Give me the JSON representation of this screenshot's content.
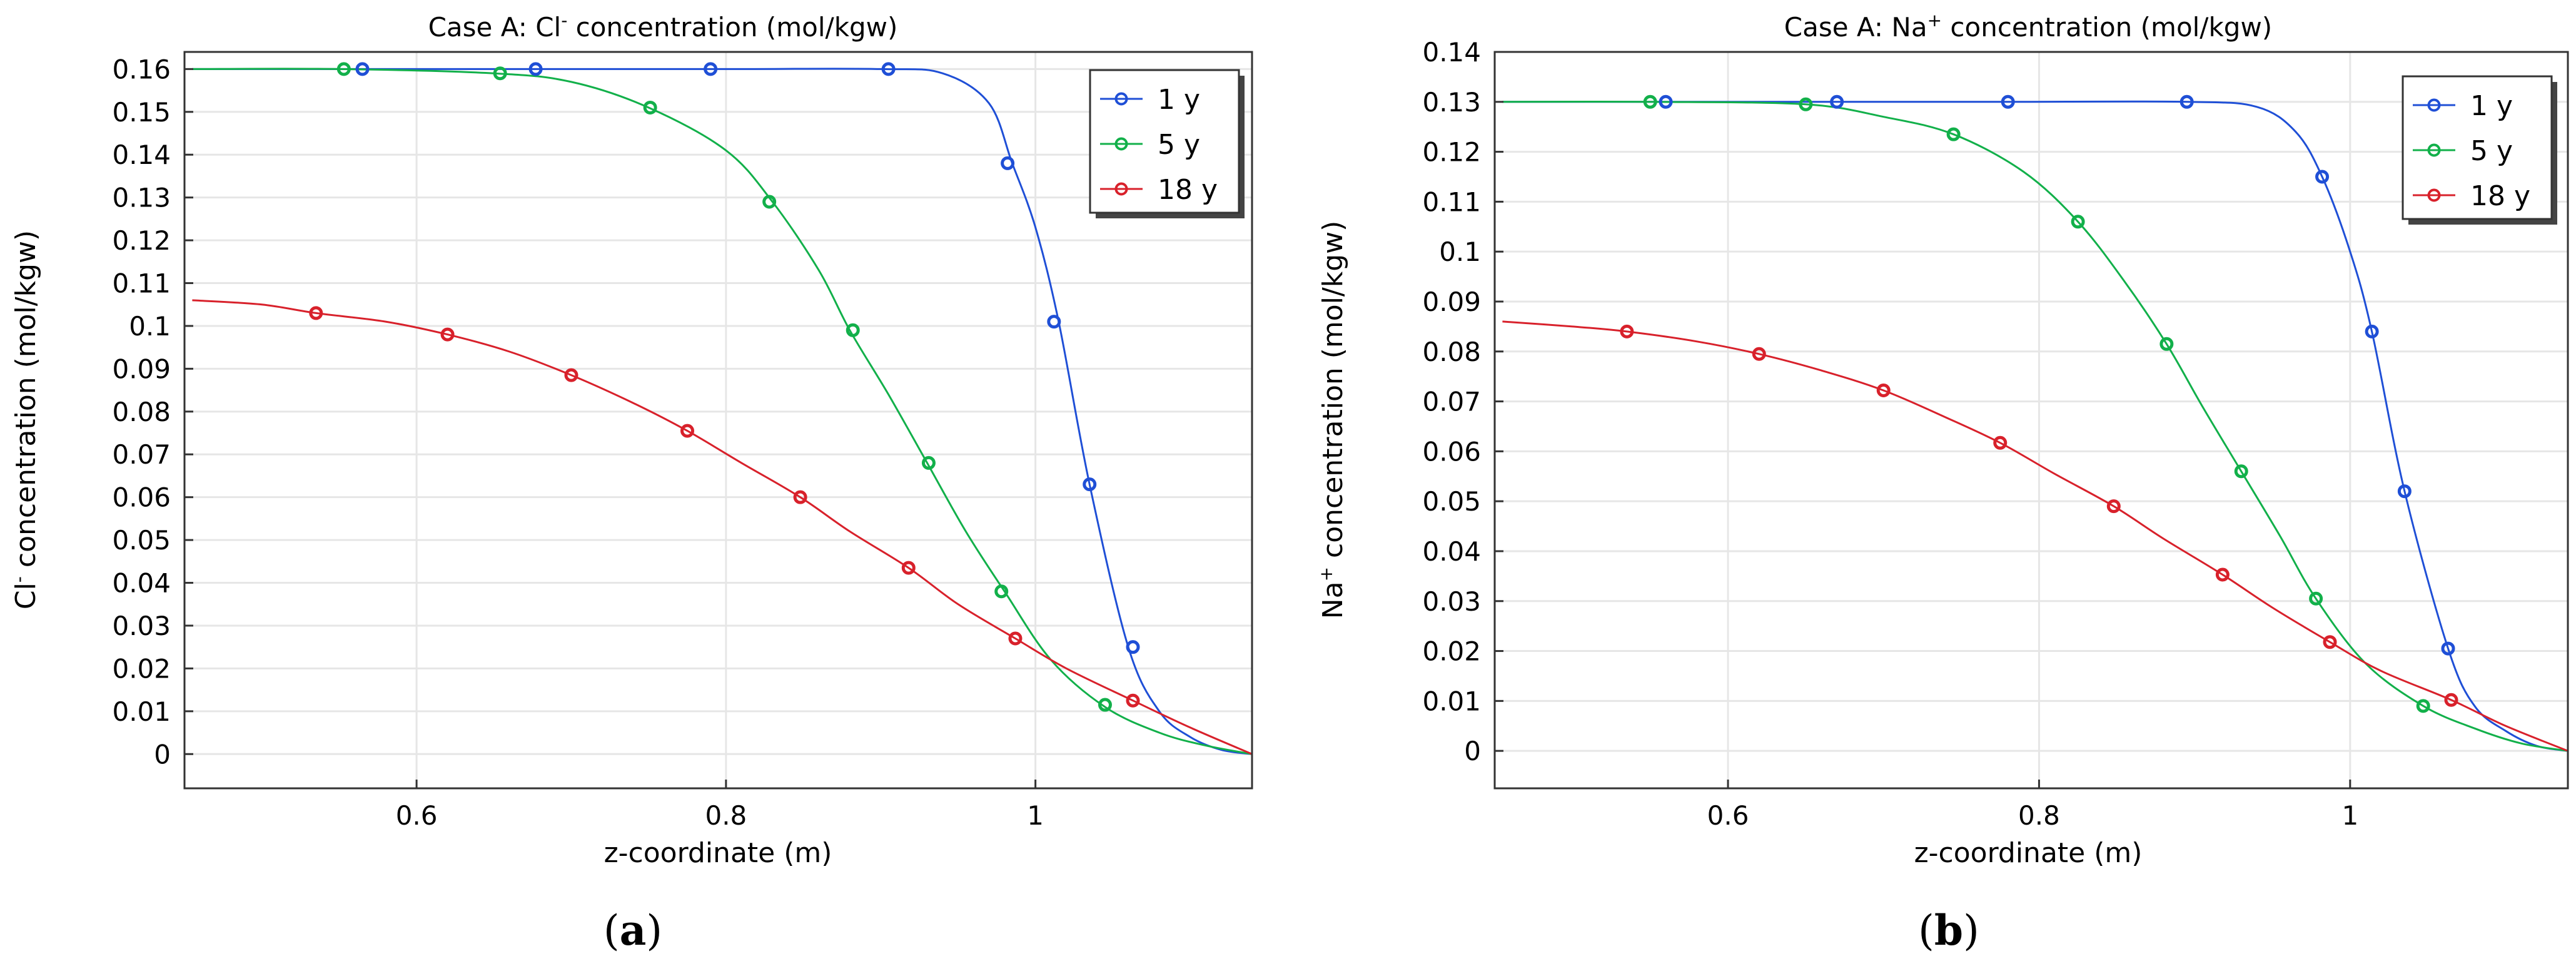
{
  "figure": {
    "captions": [
      {
        "open": "(",
        "letter": "a",
        "close": ")"
      },
      {
        "open": "(",
        "letter": "b",
        "close": ")"
      }
    ]
  },
  "chart_data": [
    {
      "type": "line",
      "title_prefix": "Case A: Cl",
      "title_sup": "-",
      "title_suffix": " concentration (mol/kgw)",
      "xlabel": "z-coordinate (m)",
      "ylabel_prefix": "Cl",
      "ylabel_sup": "-",
      "ylabel_suffix": " concentration (mol/kgw)",
      "xlim": [
        0.45,
        1.14
      ],
      "ylim": [
        -0.008,
        0.164
      ],
      "xticks": [
        0.6,
        0.8,
        1.0
      ],
      "xtick_labels": [
        "0.6",
        "0.8",
        "1"
      ],
      "yticks": [
        0,
        0.01,
        0.02,
        0.03,
        0.04,
        0.05,
        0.06,
        0.07,
        0.08,
        0.09,
        0.1,
        0.11,
        0.12,
        0.13,
        0.14,
        0.15,
        0.16
      ],
      "ytick_labels": [
        "0",
        "0.01",
        "0.02",
        "0.03",
        "0.04",
        "0.05",
        "0.06",
        "0.07",
        "0.08",
        "0.09",
        "0.1",
        "0.11",
        "0.12",
        "0.13",
        "0.14",
        "0.15",
        "0.16"
      ],
      "grid": true,
      "legend": "top-right",
      "series": [
        {
          "name": "1 y",
          "color": "#1f4fd6",
          "x": [
            0.455,
            0.56,
            0.68,
            0.8,
            0.9,
            0.94,
            0.97,
            0.985,
            1.0,
            1.015,
            1.035,
            1.06,
            1.08,
            1.1,
            1.12,
            1.14
          ],
          "y": [
            0.16,
            0.16,
            0.16,
            0.16,
            0.16,
            0.159,
            0.152,
            0.138,
            0.123,
            0.101,
            0.063,
            0.025,
            0.01,
            0.004,
            0.001,
            0
          ],
          "markers_x": [
            0.565,
            0.677,
            0.79,
            0.905,
            0.982,
            1.012,
            1.035,
            1.063
          ],
          "markers_y": [
            0.16,
            0.16,
            0.16,
            0.16,
            0.138,
            0.101,
            0.063,
            0.025
          ]
        },
        {
          "name": "5 y",
          "color": "#12b04a",
          "x": [
            0.455,
            0.55,
            0.65,
            0.7,
            0.75,
            0.8,
            0.83,
            0.86,
            0.88,
            0.905,
            0.93,
            0.955,
            0.98,
            1.01,
            1.045,
            1.08,
            1.11,
            1.14
          ],
          "y": [
            0.16,
            0.16,
            0.159,
            0.157,
            0.151,
            0.141,
            0.129,
            0.113,
            0.099,
            0.084,
            0.068,
            0.052,
            0.038,
            0.022,
            0.011,
            0.005,
            0.002,
            0
          ],
          "markers_x": [
            0.553,
            0.654,
            0.751,
            0.828,
            0.882,
            0.931,
            0.978,
            1.045
          ],
          "markers_y": [
            0.16,
            0.159,
            0.151,
            0.129,
            0.099,
            0.068,
            0.038,
            0.0115
          ]
        },
        {
          "name": "18 y",
          "color": "#d8212b",
          "x": [
            0.455,
            0.5,
            0.535,
            0.58,
            0.62,
            0.66,
            0.7,
            0.74,
            0.775,
            0.81,
            0.848,
            0.88,
            0.918,
            0.95,
            0.987,
            1.02,
            1.063,
            1.1,
            1.14
          ],
          "y": [
            0.106,
            0.105,
            0.103,
            0.101,
            0.098,
            0.094,
            0.0885,
            0.082,
            0.0755,
            0.068,
            0.06,
            0.052,
            0.0435,
            0.035,
            0.027,
            0.02,
            0.0125,
            0.0062,
            0
          ],
          "markers_x": [
            0.535,
            0.62,
            0.7,
            0.775,
            0.848,
            0.918,
            0.987,
            1.063
          ],
          "markers_y": [
            0.103,
            0.098,
            0.0885,
            0.0755,
            0.06,
            0.0435,
            0.027,
            0.0125
          ]
        }
      ]
    },
    {
      "type": "line",
      "title_prefix": "Case A: Na",
      "title_sup": "+",
      "title_suffix": " concentration (mol/kgw)",
      "xlabel": "z-coordinate (m)",
      "ylabel_prefix": "Na",
      "ylabel_sup": "+",
      "ylabel_suffix": " concentration (mol/kgw)",
      "xlim": [
        0.45,
        1.14
      ],
      "ylim": [
        -0.0075,
        0.14
      ],
      "xticks": [
        0.6,
        0.8,
        1.0
      ],
      "xtick_labels": [
        "0.6",
        "0.8",
        "1"
      ],
      "yticks": [
        0,
        0.01,
        0.02,
        0.03,
        0.04,
        0.05,
        0.06,
        0.07,
        0.08,
        0.09,
        0.1,
        0.11,
        0.12,
        0.13,
        0.14
      ],
      "ytick_labels": [
        "0",
        "0.01",
        "0.02",
        "0.03",
        "0.04",
        "0.05",
        "0.06",
        "0.07",
        "0.08",
        "0.09",
        "0.1",
        "0.11",
        "0.12",
        "0.13",
        "0.14"
      ],
      "grid": true,
      "legend": "top-right",
      "series": [
        {
          "name": "1 y",
          "color": "#1f4fd6",
          "x": [
            0.455,
            0.56,
            0.67,
            0.78,
            0.895,
            0.94,
            0.965,
            0.982,
            1.0,
            1.014,
            1.035,
            1.063,
            1.08,
            1.1,
            1.12,
            1.14
          ],
          "y": [
            0.13,
            0.13,
            0.13,
            0.13,
            0.13,
            0.129,
            0.124,
            0.115,
            0.1,
            0.084,
            0.052,
            0.0205,
            0.009,
            0.004,
            0.001,
            0
          ],
          "markers_x": [
            0.56,
            0.67,
            0.78,
            0.895,
            0.982,
            1.014,
            1.035,
            1.063
          ],
          "markers_y": [
            0.13,
            0.13,
            0.13,
            0.13,
            0.115,
            0.084,
            0.052,
            0.0205
          ]
        },
        {
          "name": "5 y",
          "color": "#12b04a",
          "x": [
            0.455,
            0.55,
            0.65,
            0.7,
            0.745,
            0.79,
            0.825,
            0.855,
            0.882,
            0.905,
            0.93,
            0.955,
            0.978,
            1.01,
            1.047,
            1.08,
            1.11,
            1.14
          ],
          "y": [
            0.13,
            0.13,
            0.1295,
            0.127,
            0.1235,
            0.116,
            0.106,
            0.094,
            0.0815,
            0.069,
            0.056,
            0.043,
            0.0305,
            0.0175,
            0.009,
            0.0045,
            0.0015,
            0
          ],
          "markers_x": [
            0.55,
            0.65,
            0.745,
            0.825,
            0.882,
            0.93,
            0.978,
            1.047
          ],
          "markers_y": [
            0.13,
            0.1295,
            0.1235,
            0.106,
            0.0815,
            0.056,
            0.0305,
            0.009
          ]
        },
        {
          "name": "18 y",
          "color": "#d8212b",
          "x": [
            0.455,
            0.5,
            0.535,
            0.58,
            0.62,
            0.66,
            0.7,
            0.74,
            0.775,
            0.81,
            0.848,
            0.88,
            0.918,
            0.95,
            0.987,
            1.02,
            1.065,
            1.1,
            1.14
          ],
          "y": [
            0.086,
            0.085,
            0.084,
            0.082,
            0.0795,
            0.0762,
            0.0722,
            0.0668,
            0.0617,
            0.0555,
            0.049,
            0.0425,
            0.0353,
            0.0287,
            0.0218,
            0.016,
            0.0102,
            0.005,
            0
          ],
          "markers_x": [
            0.535,
            0.62,
            0.7,
            0.775,
            0.848,
            0.918,
            0.987,
            1.065
          ],
          "markers_y": [
            0.084,
            0.0795,
            0.0722,
            0.0617,
            0.049,
            0.0353,
            0.0218,
            0.0102
          ]
        }
      ]
    }
  ]
}
